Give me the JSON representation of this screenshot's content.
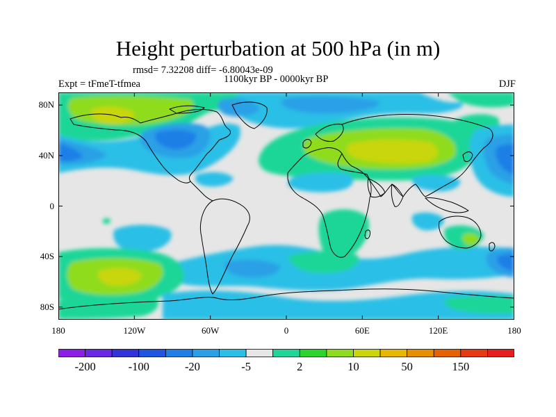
{
  "title": "Height perturbation at 500 hPa (in m)",
  "stats_line": "rmsd= 7.32208 diff= -6.80043e-09",
  "period": "1100kyr BP - 0000kyr BP",
  "experiment": "Expt = tFmeT-tfmea",
  "season": "DJF",
  "map": {
    "projection": "cylindrical-equidistant",
    "lon_range": [
      -180,
      180
    ],
    "lat_range": [
      -90,
      90
    ],
    "lat_ticks": [
      {
        "value": 80,
        "label": "80N"
      },
      {
        "value": 40,
        "label": "40N"
      },
      {
        "value": 0,
        "label": "0"
      },
      {
        "value": -40,
        "label": "40S"
      },
      {
        "value": -80,
        "label": "80S"
      }
    ],
    "lon_ticks": [
      {
        "value": -180,
        "label": "180"
      },
      {
        "value": -120,
        "label": "120W"
      },
      {
        "value": -60,
        "label": "60W"
      },
      {
        "value": 0,
        "label": "0"
      },
      {
        "value": 60,
        "label": "60E"
      },
      {
        "value": 120,
        "label": "120E"
      },
      {
        "value": 180,
        "label": "180"
      }
    ],
    "background_color": "#e6e6e6",
    "coastline_color": "#000000"
  },
  "colorbar": {
    "colors": [
      "#8c1ee6",
      "#6a28e6",
      "#3333d9",
      "#1f55e0",
      "#1f7fe6",
      "#2aa0e6",
      "#2bbfe6",
      "#e6e6e6",
      "#1fd698",
      "#2ed42e",
      "#8fdc1f",
      "#c9d60a",
      "#e6b800",
      "#e68f00",
      "#e66100",
      "#e63a14",
      "#e61e1e"
    ],
    "labels": [
      {
        "text": "-200",
        "boundary": 1
      },
      {
        "text": "-100",
        "boundary": 3
      },
      {
        "text": "-20",
        "boundary": 5
      },
      {
        "text": "-5",
        "boundary": 7
      },
      {
        "text": "2",
        "boundary": 9
      },
      {
        "text": "10",
        "boundary": 11
      },
      {
        "text": "50",
        "boundary": 13
      },
      {
        "text": "150",
        "boundary": 15
      }
    ]
  }
}
